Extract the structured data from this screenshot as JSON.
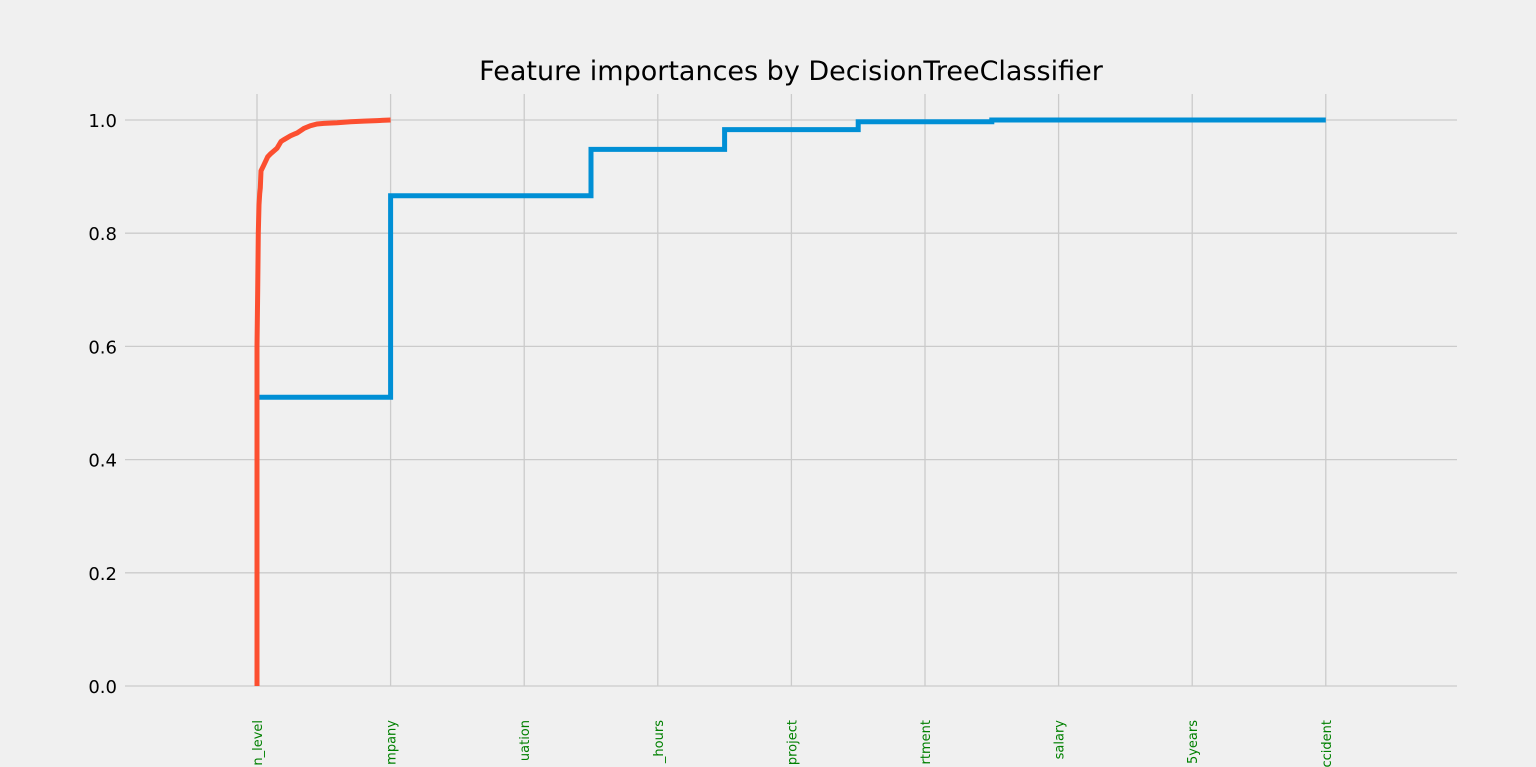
{
  "chart_data": {
    "type": "line",
    "title": "Feature importances by DecisionTreeClassifier",
    "xlabel": "",
    "ylabel": "",
    "ylim": [
      0.0,
      1.0
    ],
    "yticks": [
      "0.0",
      "0.2",
      "0.4",
      "0.6",
      "0.8",
      "1.0"
    ],
    "categories": [
      "n_level",
      "mpany",
      "uation",
      "_hours",
      "project",
      "rtment",
      "salary",
      "5years",
      "ccident"
    ],
    "grid": true,
    "legend": "none",
    "series": [
      {
        "color": "#008fd5",
        "step": "post",
        "x": [
          0,
          0.5,
          1,
          1.5,
          2,
          2.5,
          3,
          3.5,
          4,
          4.5,
          5,
          5.5,
          6,
          6.5,
          7,
          7.5,
          8
        ],
        "values": [
          0.51,
          0.51,
          0.866,
          0.866,
          0.866,
          0.948,
          0.948,
          0.983,
          0.983,
          0.997,
          0.997,
          1.0,
          1.0,
          1.0,
          1.0,
          1.0,
          1.0
        ]
      },
      {
        "color": "#fc4f30",
        "step": "none",
        "x": [
          0.0,
          0.0,
          0.005,
          0.01,
          0.015,
          0.02,
          0.025,
          0.03,
          0.05,
          0.08,
          0.1,
          0.15,
          0.18,
          0.2,
          0.25,
          0.28,
          0.3,
          0.35,
          0.4,
          0.45,
          0.5,
          0.6,
          0.7,
          0.8,
          0.9,
          1.0
        ],
        "values": [
          0.0,
          0.6,
          0.7,
          0.8,
          0.85,
          0.87,
          0.88,
          0.91,
          0.92,
          0.935,
          0.94,
          0.95,
          0.962,
          0.965,
          0.972,
          0.975,
          0.977,
          0.985,
          0.99,
          0.993,
          0.994,
          0.995,
          0.997,
          0.998,
          0.999,
          1.0
        ]
      }
    ]
  }
}
